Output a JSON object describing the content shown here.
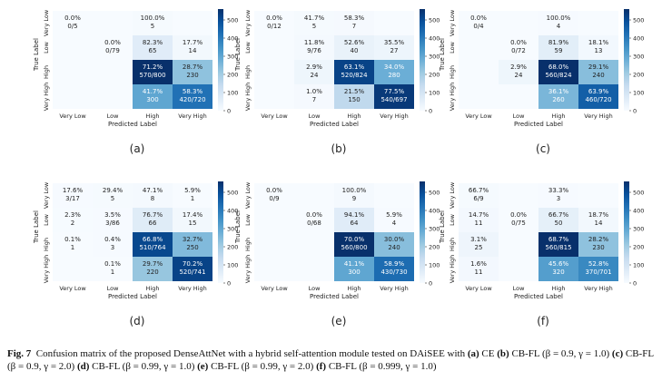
{
  "chart_data": [
    {
      "type": "heatmap",
      "panel_label": "(a)",
      "xlabel": "Predicted Label",
      "ylabel": "True Label",
      "categories": [
        "Very Low",
        "Low",
        "High",
        "Very High"
      ],
      "colorbar_ticks": [
        0,
        100,
        200,
        300,
        400,
        500
      ],
      "vmax": 560,
      "cells": [
        [
          {
            "p": "0.0%",
            "f": "0/5",
            "v": 0
          },
          null,
          {
            "p": "100.0%",
            "f": "5",
            "v": 5
          },
          null
        ],
        [
          null,
          {
            "p": "0.0%",
            "f": "0/79",
            "v": 0
          },
          {
            "p": "82.3%",
            "f": "65",
            "v": 65
          },
          {
            "p": "17.7%",
            "f": "14",
            "v": 14
          }
        ],
        [
          null,
          null,
          {
            "p": "71.2%",
            "f": "570/800",
            "v": 570
          },
          {
            "p": "28.7%",
            "f": "230",
            "v": 230
          }
        ],
        [
          null,
          null,
          {
            "p": "41.7%",
            "f": "300",
            "v": 300
          },
          {
            "p": "58.3%",
            "f": "420/720",
            "v": 420
          }
        ]
      ]
    },
    {
      "type": "heatmap",
      "panel_label": "(b)",
      "xlabel": "Predicted Label",
      "ylabel": "True Label",
      "categories": [
        "Very Low",
        "Low",
        "High",
        "Very High"
      ],
      "colorbar_ticks": [
        0,
        100,
        200,
        300,
        400,
        500
      ],
      "vmax": 560,
      "cells": [
        [
          {
            "p": "0.0%",
            "f": "0/12",
            "v": 0
          },
          {
            "p": "41.7%",
            "f": "5",
            "v": 5
          },
          {
            "p": "58.3%",
            "f": "7",
            "v": 7
          },
          null
        ],
        [
          null,
          {
            "p": "11.8%",
            "f": "9/76",
            "v": 9
          },
          {
            "p": "52.6%",
            "f": "40",
            "v": 40
          },
          {
            "p": "35.5%",
            "f": "27",
            "v": 27
          }
        ],
        [
          null,
          {
            "p": "2.9%",
            "f": "24",
            "v": 24
          },
          {
            "p": "63.1%",
            "f": "520/824",
            "v": 520
          },
          {
            "p": "34.0%",
            "f": "280",
            "v": 280
          }
        ],
        [
          null,
          {
            "p": "1.0%",
            "f": "7",
            "v": 7
          },
          {
            "p": "21.5%",
            "f": "150",
            "v": 150
          },
          {
            "p": "77.5%",
            "f": "540/697",
            "v": 540
          }
        ]
      ]
    },
    {
      "type": "heatmap",
      "panel_label": "(c)",
      "xlabel": "Predicted Label",
      "ylabel": "True Label",
      "categories": [
        "Very Low",
        "Low",
        "High",
        "Very High"
      ],
      "colorbar_ticks": [
        0,
        100,
        200,
        300,
        400,
        500
      ],
      "vmax": 560,
      "cells": [
        [
          {
            "p": "0.0%",
            "f": "0/4",
            "v": 0
          },
          null,
          {
            "p": "100.0%",
            "f": "4",
            "v": 4
          },
          null
        ],
        [
          null,
          {
            "p": "0.0%",
            "f": "0/72",
            "v": 0
          },
          {
            "p": "81.9%",
            "f": "59",
            "v": 59
          },
          {
            "p": "18.1%",
            "f": "13",
            "v": 13
          }
        ],
        [
          null,
          {
            "p": "2.9%",
            "f": "24",
            "v": 24
          },
          {
            "p": "68.0%",
            "f": "560/824",
            "v": 560
          },
          {
            "p": "29.1%",
            "f": "240",
            "v": 240
          }
        ],
        [
          null,
          null,
          {
            "p": "36.1%",
            "f": "260",
            "v": 260
          },
          {
            "p": "63.9%",
            "f": "460/720",
            "v": 460
          }
        ]
      ]
    },
    {
      "type": "heatmap",
      "panel_label": "(d)",
      "xlabel": "Predicted Label",
      "ylabel": "True Label",
      "categories": [
        "Very Low",
        "Low",
        "High",
        "Very High"
      ],
      "colorbar_ticks": [
        0,
        100,
        200,
        300,
        400,
        500
      ],
      "vmax": 560,
      "cells": [
        [
          {
            "p": "17.6%",
            "f": "3/17",
            "v": 3
          },
          {
            "p": "29.4%",
            "f": "5",
            "v": 5
          },
          {
            "p": "47.1%",
            "f": "8",
            "v": 8
          },
          {
            "p": "5.9%",
            "f": "1",
            "v": 1
          }
        ],
        [
          {
            "p": "2.3%",
            "f": "2",
            "v": 2
          },
          {
            "p": "3.5%",
            "f": "3/86",
            "v": 3
          },
          {
            "p": "76.7%",
            "f": "66",
            "v": 66
          },
          {
            "p": "17.4%",
            "f": "15",
            "v": 15
          }
        ],
        [
          {
            "p": "0.1%",
            "f": "1",
            "v": 1
          },
          {
            "p": "0.4%",
            "f": "3",
            "v": 3
          },
          {
            "p": "66.8%",
            "f": "510/764",
            "v": 510
          },
          {
            "p": "32.7%",
            "f": "250",
            "v": 250
          }
        ],
        [
          null,
          {
            "p": "0.1%",
            "f": "1",
            "v": 1
          },
          {
            "p": "29.7%",
            "f": "220",
            "v": 220
          },
          {
            "p": "70.2%",
            "f": "520/741",
            "v": 520
          }
        ]
      ]
    },
    {
      "type": "heatmap",
      "panel_label": "(e)",
      "xlabel": "Predicted Label",
      "ylabel": "True Label",
      "categories": [
        "Very Low",
        "Low",
        "High",
        "Very High"
      ],
      "colorbar_ticks": [
        0,
        100,
        200,
        300,
        400,
        500
      ],
      "vmax": 560,
      "cells": [
        [
          {
            "p": "0.0%",
            "f": "0/9",
            "v": 0
          },
          null,
          {
            "p": "100.0%",
            "f": "9",
            "v": 9
          },
          null
        ],
        [
          null,
          {
            "p": "0.0%",
            "f": "0/68",
            "v": 0
          },
          {
            "p": "94.1%",
            "f": "64",
            "v": 64
          },
          {
            "p": "5.9%",
            "f": "4",
            "v": 4
          }
        ],
        [
          null,
          null,
          {
            "p": "70.0%",
            "f": "560/800",
            "v": 560
          },
          {
            "p": "30.0%",
            "f": "240",
            "v": 240
          }
        ],
        [
          null,
          null,
          {
            "p": "41.1%",
            "f": "300",
            "v": 300
          },
          {
            "p": "58.9%",
            "f": "430/730",
            "v": 430
          }
        ]
      ]
    },
    {
      "type": "heatmap",
      "panel_label": "(f)",
      "xlabel": "Predicted Label",
      "ylabel": "True Label",
      "categories": [
        "Very Low",
        "Low",
        "High",
        "Very High"
      ],
      "colorbar_ticks": [
        0,
        100,
        200,
        300,
        400,
        500
      ],
      "vmax": 560,
      "cells": [
        [
          {
            "p": "66.7%",
            "f": "6/9",
            "v": 6
          },
          null,
          {
            "p": "33.3%",
            "f": "3",
            "v": 3
          },
          null
        ],
        [
          {
            "p": "14.7%",
            "f": "11",
            "v": 11
          },
          {
            "p": "0.0%",
            "f": "0/75",
            "v": 0
          },
          {
            "p": "66.7%",
            "f": "50",
            "v": 50
          },
          {
            "p": "18.7%",
            "f": "14",
            "v": 14
          }
        ],
        [
          {
            "p": "3.1%",
            "f": "25",
            "v": 25
          },
          null,
          {
            "p": "68.7%",
            "f": "560/815",
            "v": 560
          },
          {
            "p": "28.2%",
            "f": "230",
            "v": 230
          }
        ],
        [
          {
            "p": "1.6%",
            "f": "11",
            "v": 11
          },
          null,
          {
            "p": "45.6%",
            "f": "320",
            "v": 320
          },
          {
            "p": "52.8%",
            "f": "370/701",
            "v": 370
          }
        ]
      ]
    }
  ],
  "caption": {
    "fig": "Fig. 7",
    "text_1": "Confusion matrix of the proposed DenseAttNet with a hybrid self-attention module tested on DAiSEE with ",
    "a": "(a)",
    "t_a": " CE ",
    "b": "(b)",
    "t_b": " CB-FL (β = 0.9, γ = 1.0) ",
    "c": "(c)",
    "t_c": " CB-FL (β = 0.9, γ = 2.0) ",
    "d": "(d)",
    "t_d": " CB-FL (β = 0.99, γ = 1.0) ",
    "e": "(e)",
    "t_e": " CB-FL (β = 0.99, γ = 2.0) ",
    "f": "(f)",
    "t_f": " CB-FL (β = 0.999, γ = 1.0)"
  }
}
